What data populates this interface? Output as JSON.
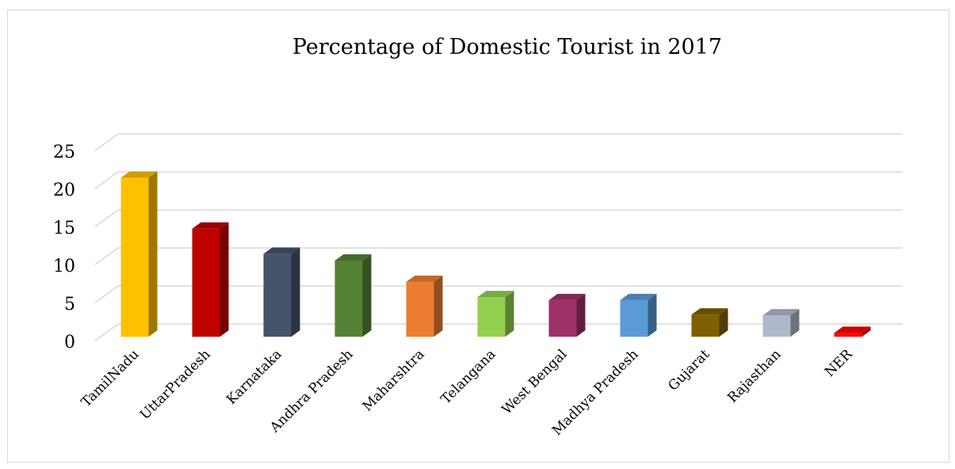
{
  "chart_data": {
    "type": "bar",
    "title": "Percentage of Domestic Tourist in 2017",
    "categories": [
      "TamilNadu",
      "UttarPradesh",
      "Karnataka",
      "Andhra Pradesh",
      "Maharshtra",
      "Telangana",
      "West Bengal",
      "Madhya Pradesh",
      "Gujarat",
      "Rajasthan",
      "NER"
    ],
    "values": [
      20.9,
      14.2,
      10.9,
      10.0,
      7.2,
      5.2,
      4.8,
      4.8,
      2.9,
      2.8,
      0.5
    ],
    "colors": [
      "#FFC000",
      "#C00000",
      "#44546A",
      "#548235",
      "#ED7D31",
      "#92D050",
      "#9E3166",
      "#5B9BD5",
      "#7F6000",
      "#ADB9CA",
      "#FF0000"
    ],
    "ylim": [
      0,
      25
    ],
    "yticks": [
      0,
      5,
      10,
      15,
      20,
      25
    ],
    "grid": true,
    "style": "3d-column"
  }
}
